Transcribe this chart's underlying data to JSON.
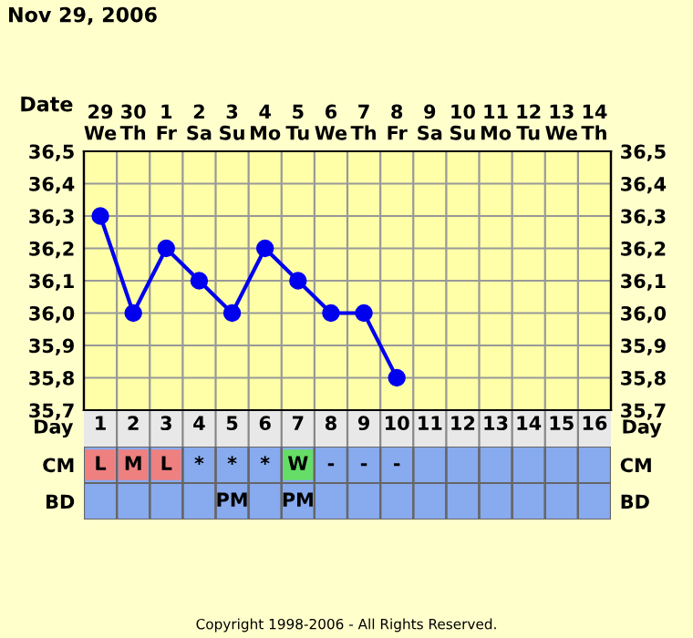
{
  "chart_data": [
    {
      "type": "line",
      "title": "Nov 29, 2006",
      "xlabel": "Date",
      "categories": [
        "29\nWe",
        "30\nTh",
        "1\nFr",
        "2\nSa",
        "3\nSu",
        "4\nMo",
        "5\nTu",
        "6\nWe",
        "7\nTh",
        "8\nFr",
        "9\nSa",
        "10\nSu",
        "11\nMo",
        "12\nTu",
        "13\nWe",
        "14\nTh"
      ],
      "series": [
        {
          "color": "#0000ee",
          "values": [
            36.3,
            36.0,
            36.2,
            36.1,
            36.0,
            36.2,
            36.1,
            36.0,
            36.0,
            35.8,
            null,
            null,
            null,
            null,
            null,
            null
          ]
        }
      ],
      "ylim": [
        35.7,
        36.5
      ],
      "yticks": [
        {
          "value": 35.7,
          "label": "35,7"
        },
        {
          "value": 35.8,
          "label": "35,8"
        },
        {
          "value": 35.9,
          "label": "35,9"
        },
        {
          "value": 36.0,
          "label": "36,0"
        },
        {
          "value": 36.1,
          "label": "36,1"
        },
        {
          "value": 36.2,
          "label": "36,2"
        },
        {
          "value": 36.3,
          "label": "36,3"
        },
        {
          "value": 36.4,
          "label": "36,4"
        },
        {
          "value": 36.5,
          "label": "36,5"
        }
      ],
      "y2lim": [
        35.7,
        36.5
      ],
      "y2ticks": [
        {
          "value": 35.7,
          "label": "35,7"
        },
        {
          "value": 35.8,
          "label": "35,8"
        },
        {
          "value": 35.9,
          "label": "35,9"
        },
        {
          "value": 36.0,
          "label": "36,0"
        },
        {
          "value": 36.1,
          "label": "36,1"
        },
        {
          "value": 36.2,
          "label": "36,2"
        },
        {
          "value": 36.3,
          "label": "36,3"
        },
        {
          "value": 36.4,
          "label": "36,4"
        },
        {
          "value": 36.5,
          "label": "36,5"
        }
      ],
      "grid": true,
      "marker": "circle",
      "line_style": "solid"
    },
    {
      "type": "heatmap",
      "xlabel": "Day",
      "categories": [
        "1",
        "2",
        "3",
        "4",
        "5",
        "6",
        "7",
        "8",
        "9",
        "10",
        "11",
        "12",
        "13",
        "14",
        "15",
        "16"
      ],
      "y_categories": [
        "CM",
        "BD"
      ],
      "y2_categories": [
        "CM",
        "BD"
      ],
      "cells": [
        [
          null,
          null,
          null,
          null,
          null,
          null,
          null,
          null,
          null,
          null,
          null,
          null,
          null,
          null,
          null,
          null
        ],
        [
          null,
          null,
          null,
          null,
          null,
          null,
          null,
          null,
          null,
          null,
          null,
          null,
          null,
          null,
          null,
          null
        ]
      ],
      "cell_labels": [
        [
          "L",
          "M",
          "L",
          "*",
          "*",
          "*",
          "W",
          "-",
          "-",
          "-",
          null,
          null,
          null,
          null,
          null,
          null
        ],
        [
          null,
          null,
          null,
          null,
          "PM",
          null,
          "PM",
          null,
          null,
          null,
          null,
          null,
          null,
          null,
          null,
          null
        ]
      ],
      "colors": [
        [
          "#ee8080",
          "#ee8080",
          "#ee8080",
          null,
          null,
          null,
          "#66dd66",
          null,
          null,
          null,
          null,
          null,
          null,
          null,
          null,
          null
        ],
        [
          null,
          null,
          null,
          null,
          null,
          null,
          null,
          null,
          null,
          null,
          null,
          null,
          null,
          null,
          null,
          null
        ]
      ],
      "annotations": [
        "Copyright 1998-2006 - All Rights Reserved."
      ]
    }
  ]
}
